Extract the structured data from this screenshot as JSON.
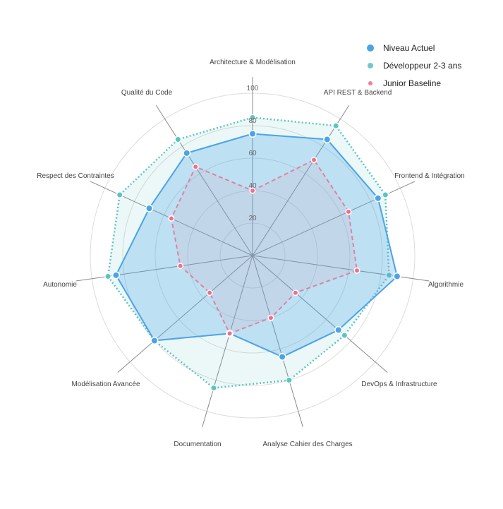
{
  "chart_data": {
    "type": "radar",
    "title": "",
    "categories": [
      "Architecture & Modélisation",
      "API REST & Backend",
      "Frontend & Intégration",
      "Algorithmie",
      "DevOps & Infrastructure",
      "Analyse Cahier des Charges",
      "Documentation",
      "Modélisation Avancée",
      "Autonomie",
      "Respect des Contraintes",
      "Qualité du Code"
    ],
    "series": [
      {
        "name": "Niveau Actuel",
        "color": "#4BA3E8",
        "values": [
          75,
          85,
          85,
          90,
          70,
          65,
          50,
          80,
          85,
          70,
          75
        ]
      },
      {
        "name": "Développeur 2-3 ans",
        "color": "#5CC4C0",
        "values": [
          85,
          95,
          90,
          85,
          75,
          80,
          85,
          80,
          90,
          90,
          85
        ]
      },
      {
        "name": "Junior Baseline",
        "color": "#E87D9C",
        "values": [
          40,
          70,
          65,
          65,
          35,
          40,
          50,
          35,
          45,
          55,
          65
        ]
      }
    ],
    "rlim": [
      0,
      100
    ],
    "ticks": [
      "20",
      "40",
      "60",
      "80",
      "100"
    ],
    "legend_position": "top-right",
    "grid": true
  },
  "legend": {
    "items": [
      {
        "label": "Niveau Actuel",
        "color": "#4BA3E8"
      },
      {
        "label": "Développeur 2-3 ans",
        "color": "#5CC4C0"
      },
      {
        "label": "Junior Baseline",
        "color": "#E87D9C"
      }
    ]
  }
}
